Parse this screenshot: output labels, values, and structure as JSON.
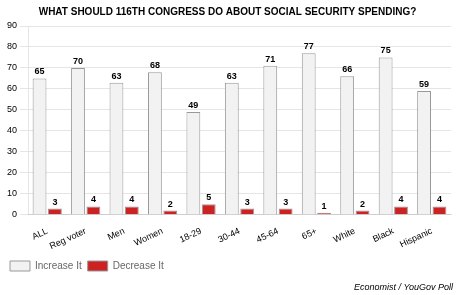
{
  "chart_data": {
    "type": "bar",
    "title": "WHAT SHOULD 116TH CONGRESS DO ABOUT SOCIAL SECURITY SPENDING?",
    "categories": [
      "ALL",
      "Reg voter",
      "Men",
      "Women",
      "18-29",
      "30-44",
      "45-64",
      "65+",
      "White",
      "Black",
      "Hispanic"
    ],
    "series": [
      {
        "name": "Increase It",
        "color": "#f2f2f2",
        "values": [
          65,
          70,
          63,
          68,
          49,
          63,
          71,
          77,
          66,
          75,
          59
        ]
      },
      {
        "name": "Decrease It",
        "color": "#cc2222",
        "values": [
          3,
          4,
          4,
          2,
          5,
          3,
          3,
          1,
          2,
          4,
          4
        ]
      }
    ],
    "ylim": [
      0,
      90
    ],
    "yticks": [
      0,
      10,
      20,
      30,
      40,
      50,
      60,
      70,
      80,
      90
    ],
    "grid": true,
    "data_labels": true,
    "legend": "lower left",
    "annotations": [
      "Economist / YouGov Poll"
    ]
  }
}
